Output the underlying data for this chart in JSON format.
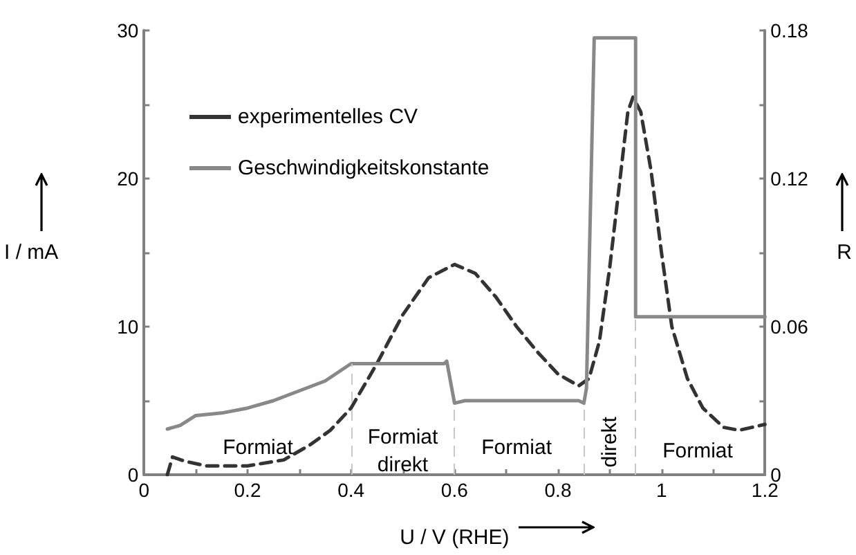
{
  "chart_data": {
    "type": "line",
    "xlabel": "U / V (RHE)",
    "ylabel": "I / mA",
    "y2label": "R",
    "xlim": [
      0,
      1.2
    ],
    "xticks": [
      0,
      {
        "value": 0.1,
        "label": null
      },
      0.2,
      {
        "value": 0.3,
        "label": null
      },
      0.4,
      {
        "value": 0.5,
        "label": null
      },
      0.6,
      {
        "value": 0.7,
        "label": null
      },
      0.8,
      {
        "value": 0.9,
        "label": null
      },
      1,
      {
        "value": 1.1,
        "label": null
      },
      1.2
    ],
    "ylim": [
      0,
      30
    ],
    "yticks": [
      0,
      {
        "value": 5,
        "label": null
      },
      10,
      {
        "value": 15,
        "label": null
      },
      20,
      {
        "value": 25,
        "label": null
      },
      30
    ],
    "y2lim": [
      0,
      0.18
    ],
    "y2ticks": [
      0,
      {
        "value": 0.03,
        "label": null
      },
      0.06,
      {
        "value": 0.09,
        "label": null
      },
      0.12,
      {
        "value": 0.15,
        "label": null
      },
      0.18
    ],
    "grid": false,
    "legend": "top left",
    "marker": "none",
    "series": [
      {
        "name": "experimentelles CV",
        "color": "#333333",
        "line_style": "dashed",
        "x": [
          0.045,
          0.055,
          0.08,
          0.12,
          0.2,
          0.27,
          0.32,
          0.36,
          0.4,
          0.45,
          0.5,
          0.55,
          0.6,
          0.64,
          0.68,
          0.72,
          0.76,
          0.8,
          0.84,
          0.86,
          0.88,
          0.9,
          0.92,
          0.935,
          0.945,
          0.96,
          0.98,
          1.0,
          1.02,
          1.05,
          1.08,
          1.12,
          1.15,
          1.2
        ],
        "values": [
          0,
          1.2,
          0.9,
          0.6,
          0.6,
          1.0,
          2.0,
          3.0,
          4.5,
          7.5,
          10.8,
          13.3,
          14.2,
          13.6,
          12.0,
          10.0,
          8.3,
          6.8,
          6.0,
          6.5,
          9,
          14,
          20,
          24.5,
          25.5,
          24.5,
          20.5,
          15,
          10,
          6.5,
          4.5,
          3.2,
          3.0,
          3.4
        ]
      },
      {
        "name": "Geschwindigkeitskonstante",
        "color": "#888888",
        "line_style": "solid",
        "axis": "y2",
        "x": [
          0.045,
          0.07,
          0.1,
          0.15,
          0.2,
          0.25,
          0.3,
          0.35,
          0.4,
          0.58,
          0.585,
          0.6,
          0.62,
          0.84,
          0.85,
          0.855,
          0.87,
          0.95,
          0.95,
          1.2
        ],
        "values": [
          0.0185,
          0.02,
          0.024,
          0.025,
          0.027,
          0.03,
          0.034,
          0.038,
          0.045,
          0.045,
          0.046,
          0.029,
          0.03,
          0.03,
          0.029,
          0.035,
          0.177,
          0.177,
          0.064,
          0.064
        ]
      }
    ],
    "ref_lines": [
      {
        "axis": "x",
        "value": 0.4,
        "color": "#c8c8c8",
        "line_style": "dashed"
      },
      {
        "axis": "x",
        "value": 0.6,
        "color": "#c8c8c8",
        "line_style": "dashed"
      },
      {
        "axis": "x",
        "value": 0.85,
        "color": "#c8c8c8",
        "line_style": "dashed"
      },
      {
        "axis": "x",
        "value": 0.95,
        "color": "#c8c8c8",
        "line_style": "dashed"
      }
    ],
    "annotations": [
      "Formiat",
      "Formiat\ndirekt",
      "Formiat",
      "direkt",
      "Formiat"
    ]
  }
}
